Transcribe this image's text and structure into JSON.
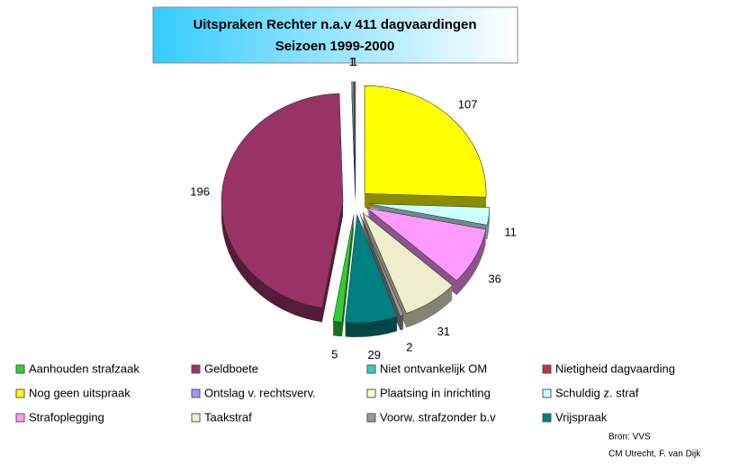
{
  "chart_data": {
    "type": "pie",
    "title": "Uitspraken Rechter n.a.v 411 dagvaardingen",
    "subtitle": "Seizoen 1999-2000",
    "categories": [
      "Aanhouden strafzaak",
      "Geldboete",
      "Niet ontvankelijk OM",
      "Nietigheid dagvaarding",
      "Nog geen uitspraak",
      "Ontslag v. rechtsverv.",
      "Plaatsing in inrichting",
      "Schuldig z. straf",
      "Strafoplegging",
      "Taakstraf",
      "Voorw. strafzonder b.v",
      "Vrijspraak"
    ],
    "values": [
      5,
      196,
      1,
      1,
      107,
      0,
      0,
      11,
      36,
      31,
      2,
      29
    ],
    "colors": [
      "#33cc33",
      "#993366",
      "#33cccc",
      "#cc3333",
      "#ffff00",
      "#9999ff",
      "#ffffcc",
      "#ccffff",
      "#ff99ff",
      "#eeeecc",
      "#999999",
      "#008080"
    ],
    "legend": "bottom",
    "notes": [
      "Bron: VVS",
      "CM Utrecht, F. van Dijk"
    ]
  }
}
